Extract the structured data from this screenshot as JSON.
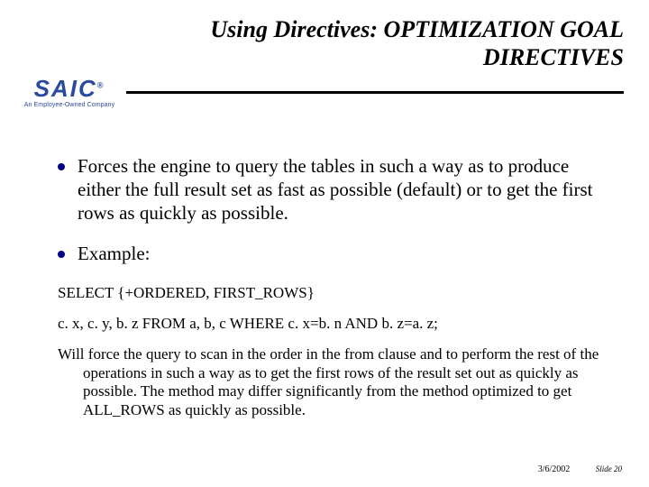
{
  "title_line1": "Using Directives:  OPTIMIZATION GOAL",
  "title_line2": "DIRECTIVES",
  "logo": {
    "text": "SAIC",
    "reg": "®",
    "tagline": "An Employee-Owned Company"
  },
  "colors": {
    "bullet": "#000080",
    "logo": "#2a4aa0",
    "rule": "#000000",
    "text": "#000000",
    "bg": "#ffffff"
  },
  "bullets": [
    "Forces the engine to query the tables in such a way as to produce either the full result set as fast as possible (default) or to get the first rows as quickly as possible.",
    "Example:"
  ],
  "code1": "SELECT {+ORDERED, FIRST_ROWS}",
  "code2": "c. x, c. y, b. z FROM a, b, c WHERE c. x=b. n AND b. z=a. z;",
  "explain": "Will force the query to scan in the order in the from clause and to perform the rest of the operations in such a way as to get the first rows of the result set out as quickly as possible.  The method may differ significantly from the method optimized to get ALL_ROWS as quickly as possible.",
  "footer": {
    "date": "3/6/2002",
    "slide": "Slide 20"
  }
}
